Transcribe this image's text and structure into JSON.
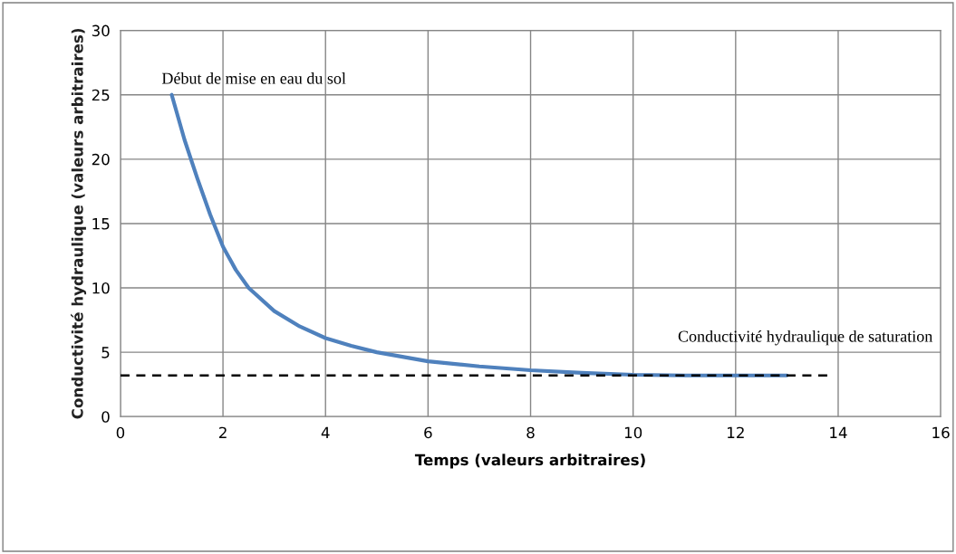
{
  "chart_data": {
    "type": "line",
    "xlabel": "Temps (valeurs arbitraires)",
    "ylabel": "Conductivité hydraulique (valeurs arbitraires)",
    "xlim": [
      0,
      16
    ],
    "xticks": [
      0,
      2,
      4,
      6,
      8,
      10,
      12,
      14,
      16
    ],
    "ylim": [
      0,
      30
    ],
    "yticks": [
      0,
      5,
      10,
      15,
      20,
      25,
      30
    ],
    "grid": true,
    "legend": false,
    "marker": "none",
    "series": [
      {
        "color": "#4f81bd",
        "x": [
          1,
          1.25,
          1.5,
          1.75,
          2,
          2.25,
          2.5,
          3,
          3.5,
          4,
          4.5,
          5,
          6,
          7,
          8,
          9,
          10,
          11,
          12,
          13
        ],
        "values": [
          25,
          21.5,
          18.5,
          15.7,
          13.2,
          11.4,
          10,
          8.2,
          7,
          6.1,
          5.5,
          5,
          4.3,
          3.9,
          3.6,
          3.4,
          3.25,
          3.2,
          3.2,
          3.2
        ],
        "line_style": "solid"
      },
      {
        "color": "#000000",
        "x": [
          0,
          13.8
        ],
        "values": [
          3.2,
          3.2
        ],
        "line_style": "dashed"
      }
    ],
    "annotations": [
      {
        "text": "Début de mise en eau du sol",
        "x": 1,
        "y": 25
      },
      {
        "text": "Conductivité hydraulique de saturation",
        "x": 13.8,
        "y": 3.2
      }
    ]
  }
}
